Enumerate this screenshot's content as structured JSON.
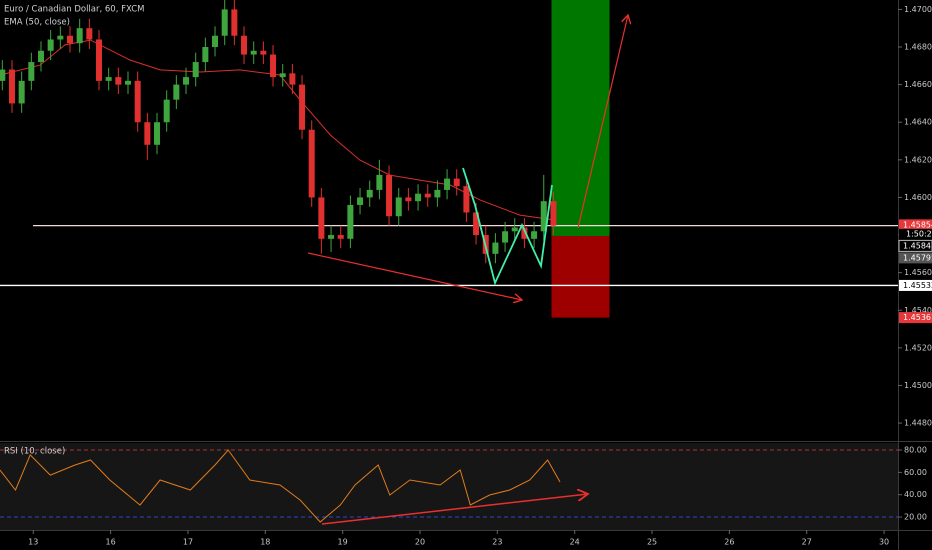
{
  "chart_data": {
    "type": "candlestick",
    "title": "Euro / Canadian Dollar, 60, FXCM",
    "indicator": "EMA (50, close)",
    "up_color": "#3fa63f",
    "down_color": "#e0302f",
    "xlim": [
      -0.43,
      11.18
    ],
    "xticks": [
      {
        "value": 0,
        "label": "13"
      },
      {
        "value": 1,
        "label": "16"
      },
      {
        "value": 2,
        "label": "17"
      },
      {
        "value": 3,
        "label": "18"
      },
      {
        "value": 4,
        "label": "19"
      },
      {
        "value": 5,
        "label": "20"
      },
      {
        "value": 6,
        "label": "23"
      },
      {
        "value": 7,
        "label": "24"
      },
      {
        "value": 8,
        "label": "25"
      },
      {
        "value": 9,
        "label": "26"
      },
      {
        "value": 10,
        "label": "27"
      },
      {
        "value": 11,
        "label": "30"
      }
    ],
    "ylim": [
      1.4471,
      1.4705
    ],
    "yticks": [
      {
        "value": 1.47,
        "label": "1.47000"
      },
      {
        "value": 1.468,
        "label": "1.46800"
      },
      {
        "value": 1.466,
        "label": "1.46600"
      },
      {
        "value": 1.464,
        "label": "1.46400"
      },
      {
        "value": 1.462,
        "label": "1.46200"
      },
      {
        "value": 1.46,
        "label": "1.46000"
      },
      {
        "value": 1.458,
        "label": "1.45800"
      },
      {
        "value": 1.456,
        "label": "1.45600"
      },
      {
        "value": 1.454,
        "label": "1.45400"
      },
      {
        "value": 1.452,
        "label": "1.45200"
      },
      {
        "value": 1.45,
        "label": "1.45000"
      },
      {
        "value": 1.448,
        "label": "1.44800"
      }
    ],
    "x": [
      -0.4,
      -0.275,
      -0.15,
      -0.025,
      0.1,
      0.225,
      0.35,
      0.475,
      0.6,
      0.725,
      0.85,
      0.975,
      1.1,
      1.225,
      1.35,
      1.475,
      1.6,
      1.725,
      1.85,
      1.975,
      2.1,
      2.225,
      2.35,
      2.475,
      2.6,
      2.725,
      2.85,
      2.975,
      3.1,
      3.225,
      3.35,
      3.475,
      3.6,
      3.725,
      3.85,
      3.975,
      4.1,
      4.225,
      4.35,
      4.475,
      4.6,
      4.725,
      4.85,
      4.975,
      5.1,
      5.225,
      5.35,
      5.475,
      5.6,
      5.725,
      5.85,
      5.975,
      6.1,
      6.225,
      6.35,
      6.475,
      6.6,
      6.725
    ],
    "open": [
      1.4662,
      1.4668,
      1.465,
      1.4662,
      1.4672,
      1.4678,
      1.4684,
      1.4686,
      1.4682,
      1.469,
      1.4684,
      1.4662,
      1.4664,
      1.466,
      1.4662,
      1.464,
      1.4628,
      1.464,
      1.4652,
      1.466,
      1.4664,
      1.4672,
      1.468,
      1.4686,
      1.47,
      1.4686,
      1.4676,
      1.4678,
      1.4676,
      1.4664,
      1.4666,
      1.466,
      1.4636,
      1.46,
      1.4578,
      1.458,
      1.4578,
      1.4596,
      1.46,
      1.4604,
      1.4612,
      1.459,
      1.46,
      1.4598,
      1.4602,
      1.46,
      1.4604,
      1.461,
      1.4606,
      1.4592,
      1.458,
      1.457,
      1.4576,
      1.4582,
      1.4584,
      1.4578,
      1.4582,
      1.4598
    ],
    "high": [
      1.4673,
      1.4673,
      1.4667,
      1.4677,
      1.4683,
      1.4689,
      1.4691,
      1.4691,
      1.4695,
      1.4695,
      1.4689,
      1.4669,
      1.4669,
      1.4667,
      1.4667,
      1.4645,
      1.4645,
      1.4657,
      1.4665,
      1.4669,
      1.4677,
      1.4685,
      1.4691,
      1.4705,
      1.4705,
      1.4691,
      1.4683,
      1.4683,
      1.4681,
      1.4671,
      1.4671,
      1.4665,
      1.4641,
      1.4605,
      1.4585,
      1.4585,
      1.4601,
      1.4605,
      1.4609,
      1.462,
      1.4617,
      1.4605,
      1.4605,
      1.4607,
      1.4607,
      1.4609,
      1.4615,
      1.4615,
      1.4611,
      1.4597,
      1.4585,
      1.4581,
      1.4587,
      1.4589,
      1.4589,
      1.4587,
      1.4612,
      1.4603
    ],
    "low": [
      1.4657,
      1.4645,
      1.4645,
      1.4657,
      1.4667,
      1.4673,
      1.4679,
      1.4677,
      1.4677,
      1.4679,
      1.4657,
      1.4657,
      1.4655,
      1.4655,
      1.4635,
      1.462,
      1.4623,
      1.4635,
      1.4647,
      1.4655,
      1.4659,
      1.4667,
      1.4675,
      1.4681,
      1.4681,
      1.4671,
      1.4671,
      1.4671,
      1.4659,
      1.4659,
      1.4655,
      1.4631,
      1.4595,
      1.457,
      1.4571,
      1.4573,
      1.4573,
      1.4591,
      1.4595,
      1.4599,
      1.4585,
      1.4585,
      1.4593,
      1.4593,
      1.4595,
      1.4595,
      1.4599,
      1.4601,
      1.4587,
      1.4575,
      1.4565,
      1.4565,
      1.4571,
      1.4577,
      1.4573,
      1.4573,
      1.4577,
      1.458
    ],
    "close": [
      1.4668,
      1.465,
      1.4662,
      1.4672,
      1.4678,
      1.4684,
      1.4686,
      1.4682,
      1.469,
      1.4684,
      1.4662,
      1.4664,
      1.466,
      1.4662,
      1.464,
      1.4628,
      1.464,
      1.4652,
      1.466,
      1.4664,
      1.4672,
      1.468,
      1.4686,
      1.47,
      1.4686,
      1.4676,
      1.4678,
      1.4676,
      1.4664,
      1.4666,
      1.466,
      1.4636,
      1.46,
      1.4578,
      1.458,
      1.4578,
      1.4596,
      1.46,
      1.4604,
      1.4612,
      1.459,
      1.46,
      1.4598,
      1.4602,
      1.46,
      1.4604,
      1.461,
      1.4606,
      1.4592,
      1.458,
      1.457,
      1.4576,
      1.4582,
      1.4584,
      1.4578,
      1.4582,
      1.4598,
      1.4585
    ],
    "ema": {
      "color": "#d9302c",
      "x": [
        -0.43,
        0.09,
        0.41,
        0.74,
        1.25,
        1.64,
        2.16,
        2.67,
        3.19,
        3.45,
        3.84,
        4.22,
        4.61,
        5.0,
        5.39,
        5.78,
        6.29,
        6.74
      ],
      "values": [
        1.46651,
        1.46704,
        1.46811,
        1.46837,
        1.46731,
        1.46678,
        1.46667,
        1.46678,
        1.46651,
        1.46518,
        1.46332,
        1.46199,
        1.46119,
        1.46092,
        1.46066,
        1.45986,
        1.45906,
        1.4588
      ]
    },
    "levels": [
      1.4585,
      1.45532
    ],
    "position": {
      "x": [
        6.7,
        7.45
      ],
      "target": 1.471,
      "entry": 1.45795,
      "stop": 1.45361,
      "profit_color": "#007800",
      "loss_color": "#9e0000"
    },
    "price_tags": [
      {
        "value": 1.45854,
        "label": "1.45854",
        "color": "#e8373a"
      },
      {
        "value": 1.45843,
        "label": "1.45843",
        "color": "#000000"
      },
      {
        "value": 1.45795,
        "label": "1.45795",
        "color": "#555555"
      },
      {
        "value": 1.45532,
        "label": "1.45532",
        "color": "#ffffff"
      },
      {
        "value": 1.45361,
        "label": "1.45361",
        "color": "#e8373a"
      }
    ],
    "countdown": "1:50:26",
    "rsi": {
      "title": "RSI (10, close)",
      "color": "#e07b1a",
      "ylim": [
        8.4,
        86.3
      ],
      "yticks": [
        {
          "value": 80,
          "label": "80.00"
        },
        {
          "value": 60,
          "label": "60.00"
        },
        {
          "value": 40,
          "label": "40.00"
        },
        {
          "value": 20,
          "label": "20.00"
        }
      ],
      "x": [
        -0.43,
        -0.23,
        -0.04,
        0.22,
        0.54,
        0.74,
        0.99,
        1.38,
        1.64,
        2.03,
        2.35,
        2.52,
        2.8,
        3.19,
        3.45,
        3.71,
        3.97,
        4.16,
        4.46,
        4.61,
        4.87,
        5.26,
        5.52,
        5.65,
        5.9,
        6.16,
        6.42,
        6.65,
        6.81
      ],
      "values": [
        62.1,
        44.2,
        75.6,
        57.6,
        66.6,
        71.1,
        53.2,
        30.8,
        53.2,
        44.2,
        66.6,
        80.0,
        53.2,
        48.7,
        35.3,
        15.6,
        30.8,
        48.7,
        66.6,
        39.7,
        53.2,
        48.7,
        62.1,
        30.8,
        39.7,
        44.2,
        53.2,
        71.1,
        51.4
      ]
    }
  }
}
